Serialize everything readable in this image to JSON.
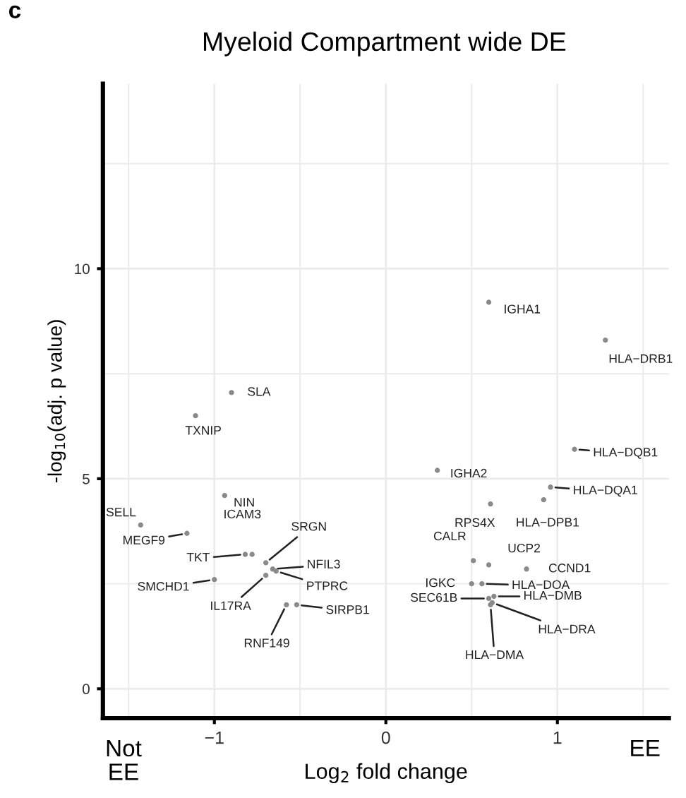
{
  "chart_data": {
    "type": "scatter",
    "title": "Myeloid Compartment wide DE",
    "xlabel": "Log$_{2}$ fold change",
    "ylabel": "-log$_{10}$(adj. p value)",
    "x": [
      0.6,
      1.28,
      -0.9,
      -1.11,
      -0.94,
      0.3,
      1.1,
      0.96,
      0.61,
      0.92,
      -1.43,
      -1.16,
      -0.78,
      -0.82,
      -0.7,
      -0.66,
      -0.64,
      -1.0,
      -0.7,
      -0.52,
      -0.58,
      0.51,
      0.5,
      0.6,
      0.82,
      0.56,
      0.6,
      0.63,
      0.62,
      0.61
    ],
    "series": [
      {
        "color": "#8a8a8a",
        "values": [
          9.2,
          8.3,
          7.05,
          6.5,
          4.6,
          5.2,
          5.7,
          4.8,
          4.4,
          4.5,
          3.9,
          3.7,
          3.2,
          3.2,
          3.0,
          2.85,
          2.8,
          2.6,
          2.7,
          2.0,
          2.0,
          3.05,
          2.5,
          2.95,
          2.85,
          2.5,
          2.15,
          2.2,
          2.05,
          2.0
        ]
      }
    ],
    "annotations": [
      {
        "text": "IGHA1",
        "x": 0.6,
        "y": 9.2
      },
      {
        "text": "HLA−DRB1",
        "x": 1.28,
        "y": 8.3
      },
      {
        "text": "SLA",
        "x": -0.9,
        "y": 7.05
      },
      {
        "text": "TXNIP",
        "x": -1.11,
        "y": 6.5
      },
      {
        "text": "NIN",
        "x": -0.94,
        "y": 4.6
      },
      {
        "text": "IGHA2",
        "x": 0.3,
        "y": 5.2
      },
      {
        "text": "HLA−DQB1",
        "x": 1.1,
        "y": 5.7
      },
      {
        "text": "HLA−DQA1",
        "x": 0.96,
        "y": 4.8
      },
      {
        "text": "RPS4X",
        "x": 0.61,
        "y": 4.4
      },
      {
        "text": "HLA−DPB1",
        "x": 0.92,
        "y": 4.5
      },
      {
        "text": "SELL",
        "x": -1.43,
        "y": 3.9
      },
      {
        "text": "MEGF9",
        "x": -1.16,
        "y": 3.7
      },
      {
        "text": "ICAM3",
        "x": -0.78,
        "y": 3.2
      },
      {
        "text": "TKT",
        "x": -0.82,
        "y": 3.2
      },
      {
        "text": "SRGN",
        "x": -0.7,
        "y": 3.0
      },
      {
        "text": "NFIL3",
        "x": -0.66,
        "y": 2.85
      },
      {
        "text": "PTPRC",
        "x": -0.64,
        "y": 2.8
      },
      {
        "text": "SMCHD1",
        "x": -1.0,
        "y": 2.6
      },
      {
        "text": "IL17RA",
        "x": -0.7,
        "y": 2.7
      },
      {
        "text": "SIRPB1",
        "x": -0.52,
        "y": 2.0
      },
      {
        "text": "RNF149",
        "x": -0.58,
        "y": 2.0
      },
      {
        "text": "CALR",
        "x": 0.51,
        "y": 3.05
      },
      {
        "text": "IGKC",
        "x": 0.5,
        "y": 2.5
      },
      {
        "text": "UCP2",
        "x": 0.6,
        "y": 2.95
      },
      {
        "text": "CCND1",
        "x": 0.82,
        "y": 2.85
      },
      {
        "text": "HLA−DOA",
        "x": 0.56,
        "y": 2.5
      },
      {
        "text": "SEC61B",
        "x": 0.6,
        "y": 2.15
      },
      {
        "text": "HLA−DMB",
        "x": 0.63,
        "y": 2.2
      },
      {
        "text": "HLA−DRA",
        "x": 0.62,
        "y": 2.05
      },
      {
        "text": "HLA−DMA",
        "x": 0.61,
        "y": 2.0
      },
      "c",
      "Not\nEE",
      "EE"
    ],
    "xlim": [
      -1.65,
      1.65
    ],
    "xticks": [
      {
        "value": -1,
        "label": "−1"
      },
      0,
      1
    ],
    "ylim": [
      -0.7,
      14.4
    ],
    "yticks": [
      0,
      5,
      10
    ],
    "grid": true,
    "marker": "circle"
  }
}
